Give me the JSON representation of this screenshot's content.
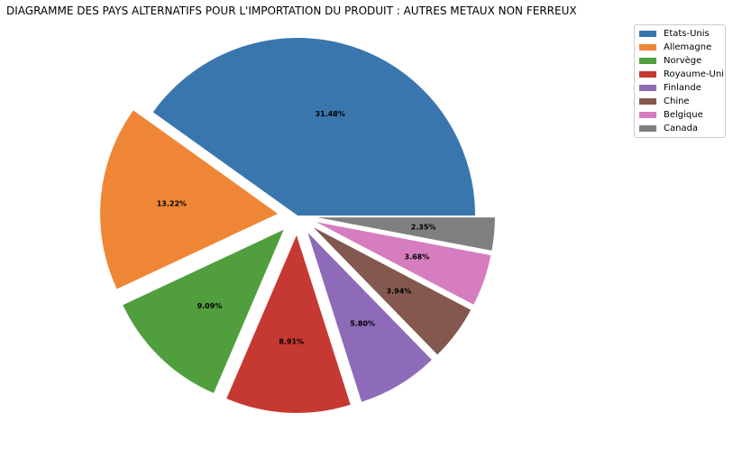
{
  "chart_data": {
    "type": "pie",
    "title": "DIAGRAMME DES PAYS ALTERNATIFS POUR L'IMPORTATION DU PRODUIT : AUTRES METAUX NON FERREUX",
    "categories": [
      "Etats-Unis",
      "Allemagne",
      "Norvège",
      "Royaume-Uni",
      "Finlande",
      "Chine",
      "Belgique",
      "Canada"
    ],
    "values": [
      31.48,
      13.22,
      9.09,
      8.91,
      5.8,
      3.94,
      3.68,
      2.35
    ],
    "value_labels": [
      "31.48%",
      "13.22%",
      "9.09%",
      "8.91%",
      "5.80%",
      "3.94%",
      "3.68%",
      "2.35%"
    ],
    "colors": [
      "#3a76ae",
      "#ef8636",
      "#519e3e",
      "#c53932",
      "#8d6bb8",
      "#84584e",
      "#d57dbf",
      "#7f7f7f"
    ],
    "exploded": true,
    "legend_position": "top-right",
    "start_angle_deg": 0,
    "direction": "counterclockwise"
  }
}
